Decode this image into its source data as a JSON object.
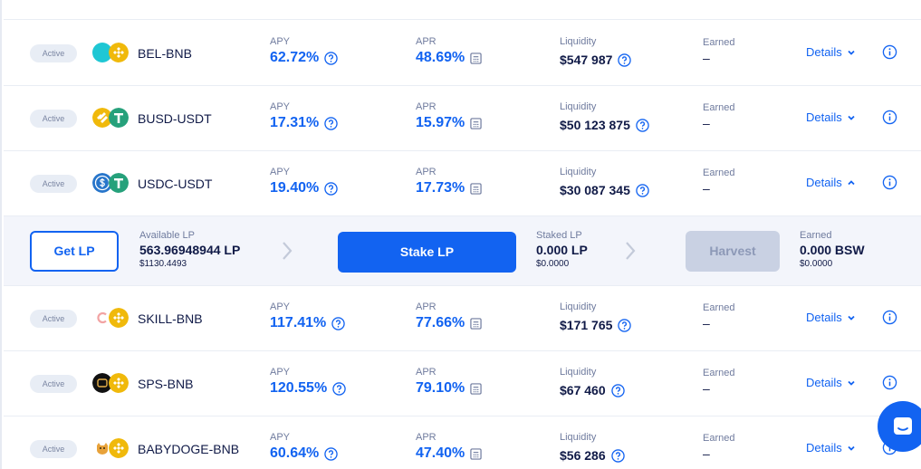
{
  "rows_top": [
    {
      "status": "Active",
      "pair": "BEL-BNB",
      "coin_a_color": "#1fc7d4",
      "apy_label": "APY",
      "apy": "62.72%",
      "apr_label": "APR",
      "apr": "48.69%",
      "liq_label": "Liquidity",
      "liquidity": "$547 987",
      "earned_label": "Earned",
      "earned": "–",
      "details": "Details",
      "expanded": false
    },
    {
      "status": "Active",
      "pair": "BUSD-USDT",
      "coin_a_color": "#f0b90b",
      "apy_label": "APY",
      "apy": "17.31%",
      "apr_label": "APR",
      "apr": "15.97%",
      "liq_label": "Liquidity",
      "liquidity": "$50 123 875",
      "earned_label": "Earned",
      "earned": "–",
      "details": "Details",
      "expanded": false
    },
    {
      "status": "Active",
      "pair": "USDC-USDT",
      "coin_a_color": "#2775ca",
      "apy_label": "APY",
      "apy": "19.40%",
      "apr_label": "APR",
      "apr": "17.73%",
      "liq_label": "Liquidity",
      "liquidity": "$30 087 345",
      "earned_label": "Earned",
      "earned": "–",
      "details": "Details",
      "expanded": true
    }
  ],
  "panel": {
    "get_lp": "Get LP",
    "available_label": "Available LP",
    "available_value": "563.96948944 LP",
    "available_usd": "$1130.4493",
    "stake_lp": "Stake LP",
    "staked_label": "Staked LP",
    "staked_value": "0.000 LP",
    "staked_usd": "$0.0000",
    "harvest": "Harvest",
    "earned_label": "Earned",
    "earned_value": "0.000 BSW",
    "earned_usd": "$0.0000"
  },
  "rows_bottom": [
    {
      "status": "Active",
      "pair": "SKILL-BNB",
      "coin_a_color": "#f5a7a7",
      "apy_label": "APY",
      "apy": "117.41%",
      "apr_label": "APR",
      "apr": "77.66%",
      "liq_label": "Liquidity",
      "liquidity": "$171 765",
      "earned_label": "Earned",
      "earned": "–",
      "details": "Details",
      "expanded": false
    },
    {
      "status": "Active",
      "pair": "SPS-BNB",
      "coin_a_color": "#111111",
      "apy_label": "APY",
      "apy": "120.55%",
      "apr_label": "APR",
      "apr": "79.10%",
      "liq_label": "Liquidity",
      "liquidity": "$67 460",
      "earned_label": "Earned",
      "earned": "–",
      "details": "Details",
      "expanded": false
    },
    {
      "status": "Active",
      "pair": "BABYDOGE-BNB",
      "coin_a_color": "#e8a23a",
      "apy_label": "APY",
      "apy": "60.64%",
      "apr_label": "APR",
      "apr": "47.40%",
      "liq_label": "Liquidity",
      "liquidity": "$56 286",
      "earned_label": "Earned",
      "earned": "–",
      "details": "Details",
      "expanded": false
    }
  ],
  "colors": {
    "accent": "#1263f1",
    "bnb": "#f0b90b",
    "usdt": "#26a17b"
  },
  "icons": {
    "question": "question-circle-icon",
    "calculator": "calculator-icon",
    "info": "info-circle-icon",
    "chevron_down": "chevron-down-icon",
    "chevron_up": "chevron-up-icon",
    "chevron_right": "chevron-right-icon",
    "chat": "chat-bubble-icon"
  }
}
